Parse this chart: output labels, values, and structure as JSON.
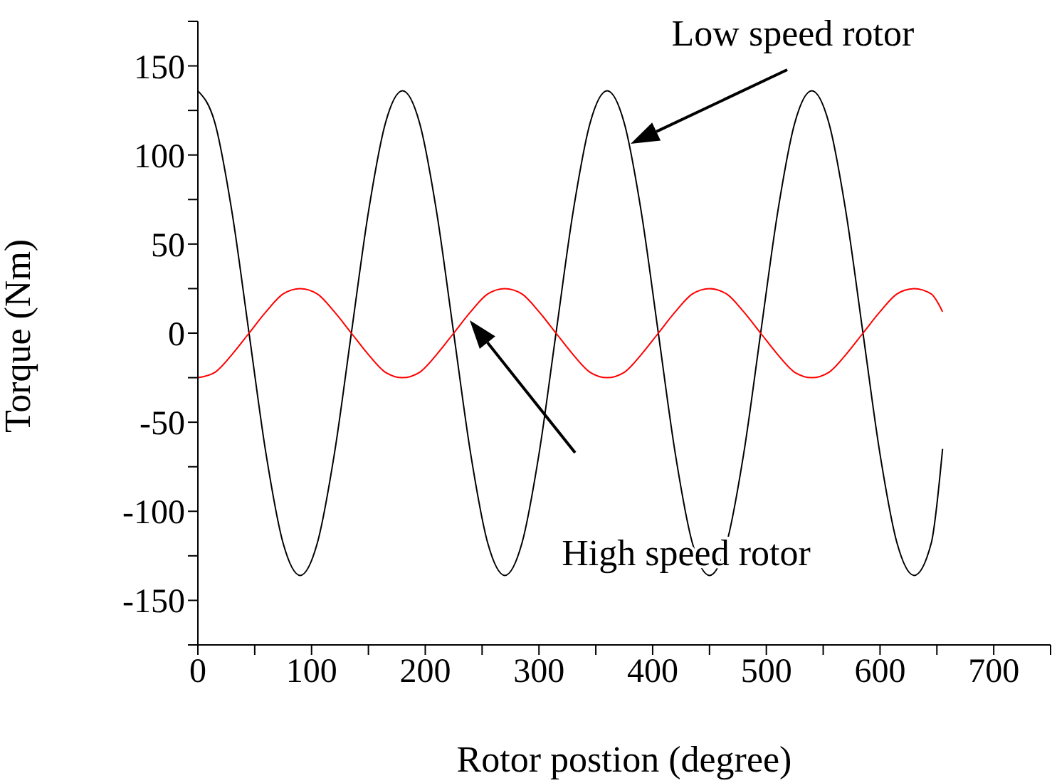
{
  "chart_data": {
    "type": "line",
    "xlabel": "Rotor postion (degree)",
    "ylabel": "Torque (Nm)",
    "xlim": [
      0,
      750
    ],
    "ylim": [
      -175,
      175
    ],
    "xticks": [
      0,
      {
        "value": 50,
        "label": null
      },
      100,
      {
        "value": 150,
        "label": null
      },
      200,
      {
        "value": 250,
        "label": null
      },
      300,
      {
        "value": 350,
        "label": null
      },
      400,
      {
        "value": 450,
        "label": null
      },
      500,
      {
        "value": 550,
        "label": null
      },
      600,
      {
        "value": 650,
        "label": null
      },
      700,
      {
        "value": 750,
        "label": null
      }
    ],
    "yticks": [
      {
        "value": -175,
        "label": null
      },
      -150,
      {
        "value": -125,
        "label": null
      },
      -100,
      {
        "value": -75,
        "label": null
      },
      -50,
      {
        "value": -25,
        "label": null
      },
      0,
      {
        "value": 25,
        "label": null
      },
      50,
      {
        "value": 75,
        "label": null
      },
      100,
      {
        "value": 125,
        "label": null
      },
      150,
      {
        "value": 175,
        "label": null
      }
    ],
    "x": [
      0,
      15,
      30,
      45,
      60,
      75,
      90,
      105,
      120,
      135,
      150,
      165,
      180,
      195,
      210,
      225,
      240,
      255,
      270,
      285,
      300,
      315,
      330,
      345,
      360,
      375,
      390,
      405,
      420,
      435,
      450,
      465,
      480,
      495,
      510,
      525,
      540,
      555,
      570,
      585,
      600,
      615,
      630,
      645,
      655
    ],
    "series": [
      {
        "color": "#000000",
        "values": [
          136,
          118,
          68,
          0,
          -68,
          -118,
          -136,
          -118,
          -68,
          0,
          68,
          118,
          136,
          118,
          68,
          0,
          -68,
          -118,
          -136,
          -118,
          -68,
          0,
          68,
          118,
          136,
          118,
          68,
          0,
          -68,
          -118,
          -136,
          -118,
          -68,
          0,
          68,
          118,
          136,
          118,
          68,
          0,
          -68,
          -118,
          -136,
          -118,
          -65
        ]
      },
      {
        "color": "#ff0000",
        "values": [
          -25,
          -22,
          -12,
          0,
          12,
          22,
          25,
          22,
          12,
          0,
          -12,
          -22,
          -25,
          -22,
          -12,
          0,
          12,
          22,
          25,
          22,
          12,
          0,
          -12,
          -22,
          -25,
          -22,
          -12,
          0,
          12,
          22,
          25,
          22,
          12,
          0,
          -12,
          -22,
          -25,
          -22,
          -12,
          0,
          12,
          22,
          25,
          22,
          12
        ]
      }
    ],
    "annotations": [
      "Low speed rotor",
      "High speed rotor"
    ],
    "grid": false,
    "legend": false,
    "marker": "none",
    "line_style": "solid"
  }
}
